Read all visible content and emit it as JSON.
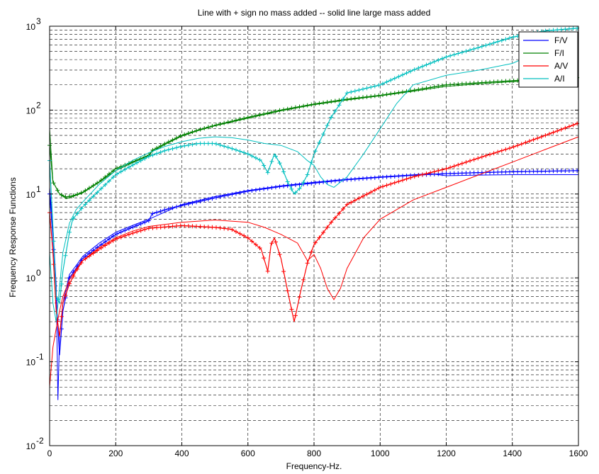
{
  "chart_data": {
    "type": "line",
    "title": "Line with + sign no mass added -- solid line large mass added",
    "xlabel": "Frequency-Hz.",
    "ylabel": "Frequency Response Functions",
    "xlim": [
      0,
      1600
    ],
    "ylim": [
      0.01,
      1000
    ],
    "yscale": "log",
    "grid": true,
    "legend_position": "top-right",
    "x_ticks": [
      0,
      200,
      400,
      600,
      800,
      1000,
      1200,
      1400,
      1600
    ],
    "x_tick_labels": [
      "0",
      "200",
      "400",
      "600",
      "800",
      "1000",
      "1200",
      "1400",
      "1600"
    ],
    "y_ticks": [
      0.01,
      0.1,
      1,
      10,
      100,
      1000
    ],
    "y_tick_labels": [
      {
        "base": "10",
        "exp": "-2"
      },
      {
        "base": "10",
        "exp": "-1"
      },
      {
        "base": "10",
        "exp": "0"
      },
      {
        "base": "10",
        "exp": "1"
      },
      {
        "base": "10",
        "exp": "2"
      },
      {
        "base": "10",
        "exp": "3"
      }
    ],
    "series": [
      {
        "name": "F/V",
        "color": "#0000ff",
        "no_mass": [
          [
            0,
            10
          ],
          [
            10,
            3
          ],
          [
            20,
            0.6
          ],
          [
            30,
            0.12
          ],
          [
            40,
            0.4
          ],
          [
            60,
            1.0
          ],
          [
            80,
            1.3
          ],
          [
            100,
            1.7
          ],
          [
            150,
            2.4
          ],
          [
            200,
            3.3
          ],
          [
            250,
            4.0
          ],
          [
            300,
            4.8
          ],
          [
            310,
            5.8
          ],
          [
            350,
            6.5
          ],
          [
            400,
            7.3
          ],
          [
            500,
            9.0
          ],
          [
            600,
            10.8
          ],
          [
            700,
            12.3
          ],
          [
            800,
            13.5
          ],
          [
            900,
            14.8
          ],
          [
            1000,
            15.8
          ],
          [
            1100,
            16.7
          ],
          [
            1200,
            17.5
          ],
          [
            1300,
            18.0
          ],
          [
            1400,
            18.4
          ],
          [
            1500,
            18.7
          ],
          [
            1600,
            19.0
          ]
        ],
        "large_mass": [
          [
            0,
            12
          ],
          [
            10,
            4
          ],
          [
            20,
            0.8
          ],
          [
            25,
            0.035
          ],
          [
            30,
            0.2
          ],
          [
            40,
            0.5
          ],
          [
            60,
            1.1
          ],
          [
            80,
            1.4
          ],
          [
            100,
            1.8
          ],
          [
            150,
            2.6
          ],
          [
            200,
            3.5
          ],
          [
            250,
            4.2
          ],
          [
            300,
            5.0
          ],
          [
            400,
            7.5
          ],
          [
            500,
            9.3
          ],
          [
            600,
            11.0
          ],
          [
            700,
            12.5
          ],
          [
            800,
            13.8
          ],
          [
            900,
            15.0
          ],
          [
            1000,
            16.0
          ],
          [
            1100,
            16.9
          ],
          [
            1150,
            17.5
          ],
          [
            1200,
            16.5
          ],
          [
            1300,
            16.8
          ],
          [
            1400,
            17.0
          ],
          [
            1500,
            17.0
          ],
          [
            1600,
            17.0
          ]
        ]
      },
      {
        "name": "F/I",
        "color": "#008000",
        "no_mass": [
          [
            0,
            38
          ],
          [
            10,
            14
          ],
          [
            30,
            10
          ],
          [
            50,
            9.2
          ],
          [
            70,
            9.5
          ],
          [
            100,
            10.5
          ],
          [
            150,
            14
          ],
          [
            200,
            20
          ],
          [
            250,
            24
          ],
          [
            300,
            29
          ],
          [
            310,
            33
          ],
          [
            350,
            40
          ],
          [
            400,
            50
          ],
          [
            450,
            58
          ],
          [
            500,
            66
          ],
          [
            600,
            82
          ],
          [
            700,
            100
          ],
          [
            800,
            118
          ],
          [
            900,
            135
          ],
          [
            1000,
            150
          ],
          [
            1100,
            172
          ],
          [
            1200,
            200
          ],
          [
            1300,
            212
          ],
          [
            1400,
            224
          ],
          [
            1500,
            234
          ],
          [
            1600,
            244
          ]
        ],
        "large_mass": [
          [
            0,
            60
          ],
          [
            10,
            14
          ],
          [
            30,
            10
          ],
          [
            50,
            8.8
          ],
          [
            70,
            9.3
          ],
          [
            100,
            10.3
          ],
          [
            150,
            13.8
          ],
          [
            200,
            19
          ],
          [
            250,
            23.5
          ],
          [
            300,
            28.5
          ],
          [
            310,
            32
          ],
          [
            350,
            39
          ],
          [
            400,
            49
          ],
          [
            450,
            57
          ],
          [
            500,
            65
          ],
          [
            600,
            80
          ],
          [
            700,
            98
          ],
          [
            800,
            116
          ],
          [
            900,
            132
          ],
          [
            1000,
            148
          ],
          [
            1100,
            168
          ],
          [
            1200,
            192
          ],
          [
            1300,
            206
          ],
          [
            1400,
            218
          ],
          [
            1500,
            228
          ],
          [
            1600,
            235
          ]
        ]
      },
      {
        "name": "A/V",
        "color": "#ff0000",
        "no_mass": [
          [
            0,
            6
          ],
          [
            10,
            2
          ],
          [
            20,
            0.4
          ],
          [
            30,
            0.2
          ],
          [
            40,
            0.5
          ],
          [
            60,
            0.85
          ],
          [
            80,
            1.2
          ],
          [
            100,
            1.6
          ],
          [
            150,
            2.2
          ],
          [
            200,
            2.9
          ],
          [
            250,
            3.4
          ],
          [
            300,
            3.9
          ],
          [
            400,
            4.2
          ],
          [
            500,
            4.0
          ],
          [
            550,
            3.8
          ],
          [
            600,
            3.0
          ],
          [
            640,
            2.2
          ],
          [
            660,
            1.2
          ],
          [
            670,
            2.5
          ],
          [
            680,
            3.0
          ],
          [
            700,
            1.7
          ],
          [
            720,
            0.7
          ],
          [
            740,
            0.3
          ],
          [
            760,
            0.7
          ],
          [
            780,
            1.5
          ],
          [
            800,
            2.5
          ],
          [
            850,
            4.5
          ],
          [
            900,
            7.5
          ],
          [
            1000,
            12
          ],
          [
            1100,
            16
          ],
          [
            1200,
            20
          ],
          [
            1300,
            27
          ],
          [
            1400,
            36
          ],
          [
            1500,
            50
          ],
          [
            1600,
            70
          ]
        ],
        "large_mass": [
          [
            0,
            0.05
          ],
          [
            10,
            0.15
          ],
          [
            20,
            0.25
          ],
          [
            30,
            0.4
          ],
          [
            40,
            0.6
          ],
          [
            60,
            0.95
          ],
          [
            80,
            1.25
          ],
          [
            100,
            1.6
          ],
          [
            150,
            2.3
          ],
          [
            200,
            3.0
          ],
          [
            250,
            3.6
          ],
          [
            300,
            4.1
          ],
          [
            400,
            4.6
          ],
          [
            500,
            4.9
          ],
          [
            600,
            4.6
          ],
          [
            650,
            4.0
          ],
          [
            700,
            3.3
          ],
          [
            750,
            2.6
          ],
          [
            780,
            1.6
          ],
          [
            800,
            1.9
          ],
          [
            820,
            1.3
          ],
          [
            840,
            0.75
          ],
          [
            860,
            0.55
          ],
          [
            880,
            0.75
          ],
          [
            900,
            1.3
          ],
          [
            950,
            3.0
          ],
          [
            1000,
            5.0
          ],
          [
            1100,
            8.5
          ],
          [
            1200,
            12
          ],
          [
            1300,
            17
          ],
          [
            1400,
            24
          ],
          [
            1500,
            34
          ],
          [
            1600,
            48
          ]
        ]
      },
      {
        "name": "A/I",
        "color": "#00bfbf",
        "no_mass": [
          [
            0,
            25
          ],
          [
            10,
            4
          ],
          [
            20,
            0.6
          ],
          [
            30,
            0.5
          ],
          [
            40,
            1.2
          ],
          [
            60,
            3.5
          ],
          [
            70,
            5
          ],
          [
            100,
            7
          ],
          [
            150,
            11
          ],
          [
            200,
            17
          ],
          [
            250,
            22
          ],
          [
            300,
            28
          ],
          [
            350,
            33
          ],
          [
            400,
            37
          ],
          [
            450,
            40
          ],
          [
            500,
            40
          ],
          [
            550,
            35
          ],
          [
            600,
            30
          ],
          [
            640,
            25
          ],
          [
            660,
            18
          ],
          [
            680,
            30
          ],
          [
            700,
            22
          ],
          [
            720,
            14
          ],
          [
            740,
            10
          ],
          [
            760,
            12
          ],
          [
            780,
            17
          ],
          [
            800,
            30
          ],
          [
            850,
            80
          ],
          [
            900,
            160
          ],
          [
            1000,
            200
          ],
          [
            1100,
            300
          ],
          [
            1200,
            430
          ],
          [
            1300,
            560
          ],
          [
            1400,
            740
          ],
          [
            1500,
            880
          ],
          [
            1600,
            950
          ]
        ],
        "large_mass": [
          [
            0,
            2
          ],
          [
            10,
            0.5
          ],
          [
            20,
            0.3
          ],
          [
            40,
            2
          ],
          [
            60,
            4.5
          ],
          [
            80,
            6.5
          ],
          [
            100,
            8
          ],
          [
            150,
            13
          ],
          [
            200,
            19
          ],
          [
            250,
            25
          ],
          [
            300,
            31
          ],
          [
            350,
            37
          ],
          [
            400,
            42
          ],
          [
            450,
            46
          ],
          [
            500,
            48
          ],
          [
            550,
            47
          ],
          [
            600,
            44
          ],
          [
            650,
            40
          ],
          [
            700,
            38
          ],
          [
            750,
            32
          ],
          [
            780,
            25
          ],
          [
            800,
            22
          ],
          [
            820,
            16
          ],
          [
            840,
            13
          ],
          [
            860,
            12
          ],
          [
            900,
            16
          ],
          [
            950,
            30
          ],
          [
            1000,
            60
          ],
          [
            1050,
            120
          ],
          [
            1100,
            200
          ],
          [
            1200,
            260
          ],
          [
            1300,
            300
          ],
          [
            1400,
            360
          ],
          [
            1500,
            540
          ],
          [
            1600,
            860
          ]
        ]
      }
    ]
  }
}
